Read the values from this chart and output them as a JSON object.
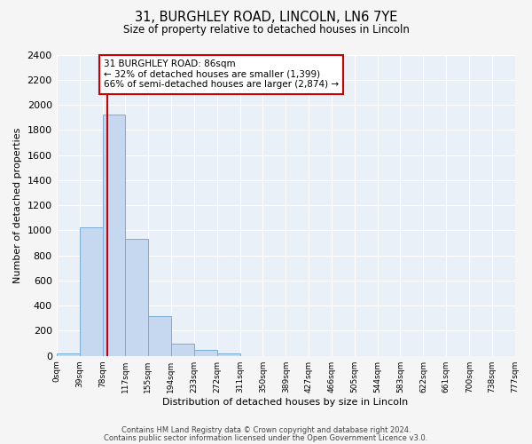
{
  "title": "31, BURGHLEY ROAD, LINCOLN, LN6 7YE",
  "subtitle": "Size of property relative to detached houses in Lincoln",
  "xlabel": "Distribution of detached houses by size in Lincoln",
  "ylabel": "Number of detached properties",
  "bin_edges": [
    0,
    39,
    78,
    117,
    155,
    194,
    233,
    272,
    311,
    350,
    389,
    427,
    466,
    505,
    544,
    583,
    622,
    661,
    700,
    738,
    777
  ],
  "bin_labels": [
    "0sqm",
    "39sqm",
    "78sqm",
    "117sqm",
    "155sqm",
    "194sqm",
    "233sqm",
    "272sqm",
    "311sqm",
    "350sqm",
    "389sqm",
    "427sqm",
    "466sqm",
    "505sqm",
    "544sqm",
    "583sqm",
    "622sqm",
    "661sqm",
    "700sqm",
    "738sqm",
    "777sqm"
  ],
  "counts": [
    20,
    1025,
    1920,
    930,
    315,
    100,
    48,
    20,
    0,
    0,
    0,
    0,
    0,
    0,
    0,
    0,
    0,
    0,
    0,
    0
  ],
  "bar_color": "#c5d8ef",
  "bar_edge_color": "#7aadd4",
  "property_line_x": 86,
  "property_line_color": "#cc0000",
  "annotation_title": "31 BURGHLEY ROAD: 86sqm",
  "annotation_line1": "← 32% of detached houses are smaller (1,399)",
  "annotation_line2": "66% of semi-detached houses are larger (2,874) →",
  "annotation_box_color": "#ffffff",
  "annotation_box_edge": "#cc0000",
  "ylim": [
    0,
    2400
  ],
  "yticks": [
    0,
    200,
    400,
    600,
    800,
    1000,
    1200,
    1400,
    1600,
    1800,
    2000,
    2200,
    2400
  ],
  "bg_color": "#eaf0f8",
  "fig_bg_color": "#f5f5f5",
  "footer1": "Contains HM Land Registry data © Crown copyright and database right 2024.",
  "footer2": "Contains public sector information licensed under the Open Government Licence v3.0."
}
